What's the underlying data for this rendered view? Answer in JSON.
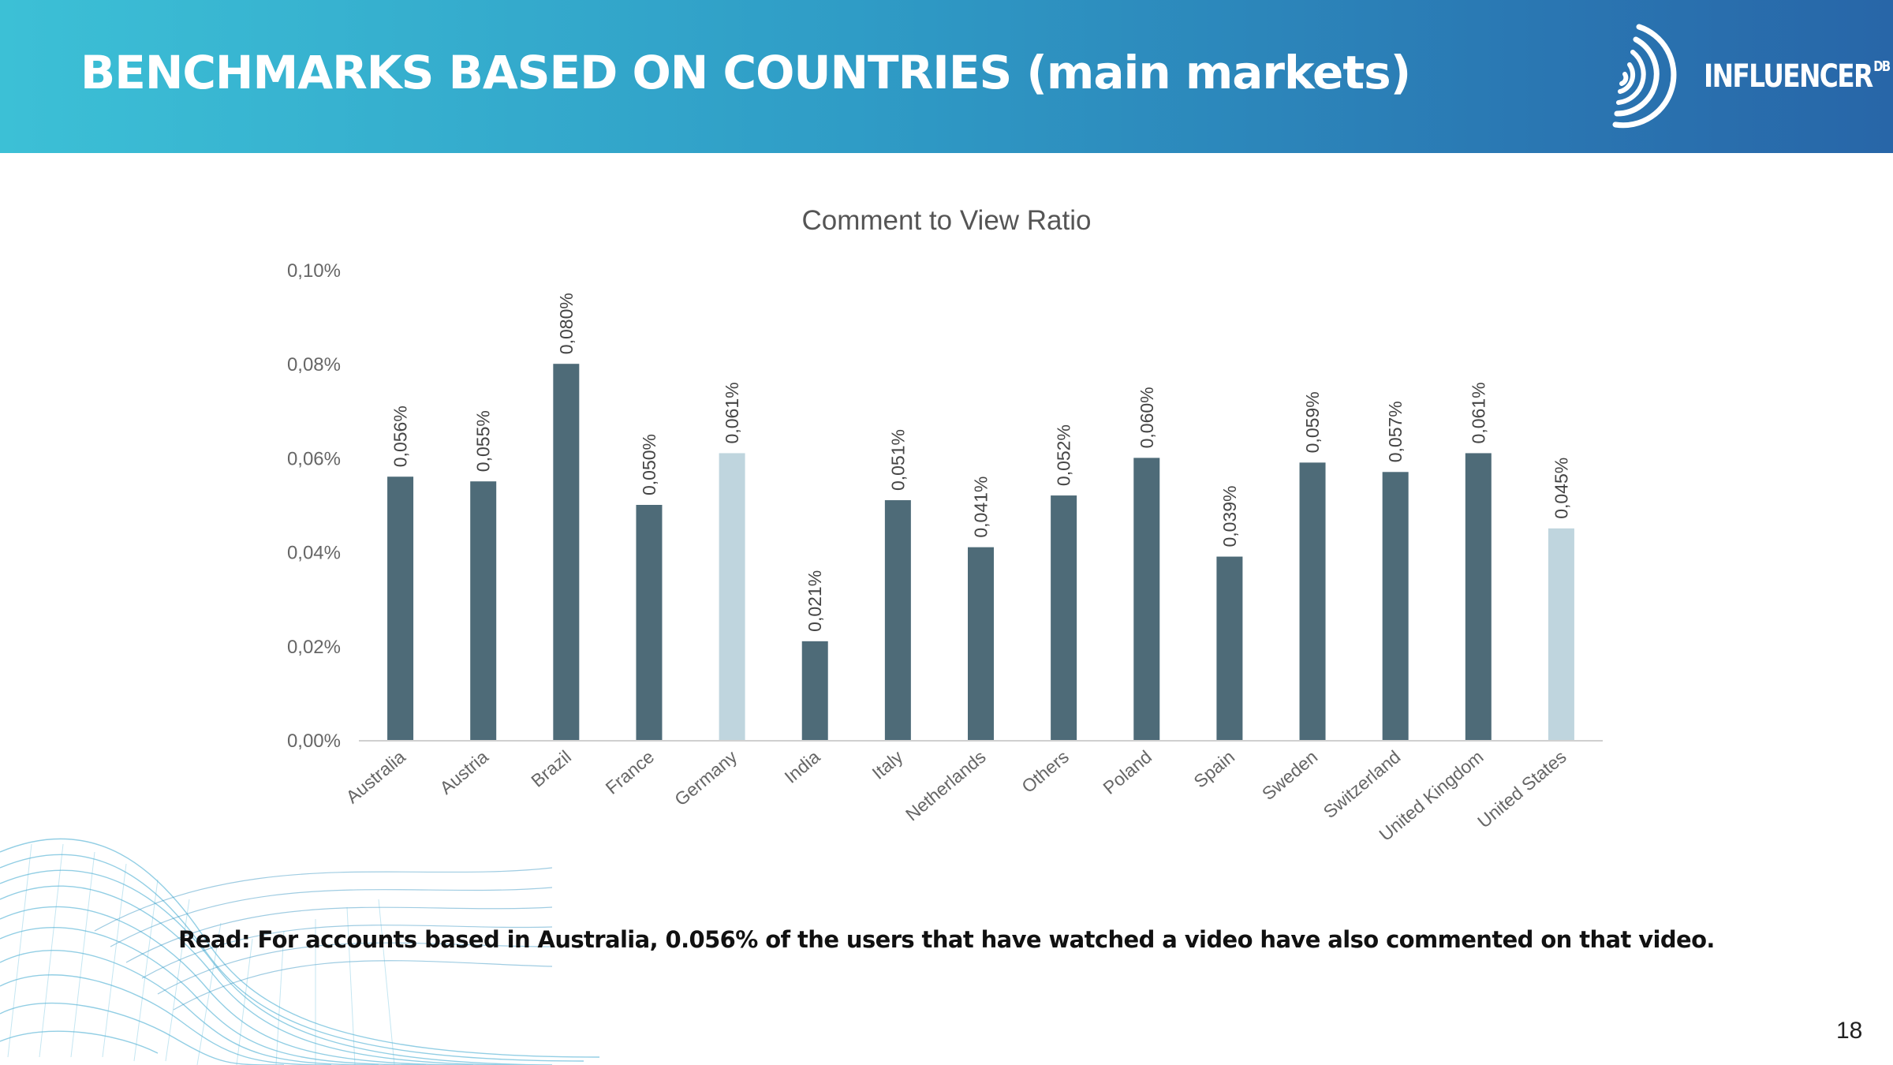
{
  "header": {
    "title": "BENCHMARKS BASED ON COUNTRIES (main markets)",
    "logo_text": "INFLUENCER",
    "logo_superscript": "DB",
    "logo_icon": "concentric-arcs-icon"
  },
  "chart_data": {
    "type": "bar",
    "title": "Comment to View Ratio",
    "xlabel": "",
    "ylabel": "",
    "ylim": [
      0,
      0.1
    ],
    "y_ticks": [
      0,
      0.02,
      0.04,
      0.06,
      0.08,
      0.1
    ],
    "y_tick_labels": [
      "0,00%",
      "0,02%",
      "0,04%",
      "0,06%",
      "0,08%",
      "0,10%"
    ],
    "grid": false,
    "legend": "none",
    "categories": [
      "Australia",
      "Austria",
      "Brazil",
      "France",
      "Germany",
      "India",
      "Italy",
      "Netherlands",
      "Others",
      "Poland",
      "Spain",
      "Sweden",
      "Switzerland",
      "United Kingdom",
      "United States"
    ],
    "values": [
      0.056,
      0.055,
      0.08,
      0.05,
      0.061,
      0.021,
      0.051,
      0.041,
      0.052,
      0.06,
      0.039,
      0.059,
      0.057,
      0.061,
      0.045
    ],
    "data_labels": [
      "0,056%",
      "0,055%",
      "0,080%",
      "0,050%",
      "0,061%",
      "0,021%",
      "0,051%",
      "0,041%",
      "0,052%",
      "0,060%",
      "0,039%",
      "0,059%",
      "0,057%",
      "0,061%",
      "0,045%"
    ],
    "highlighted": [
      "Germany",
      "United States"
    ],
    "colors": {
      "default": "#4e6b78",
      "highlight": "#bfd5de",
      "axis_text": "#666666",
      "title": "#555555"
    }
  },
  "footer": {
    "read_note": "Read: For accounts based in Australia, 0.056% of the users that have watched a video have also commented on that video.",
    "page_number": "18"
  }
}
